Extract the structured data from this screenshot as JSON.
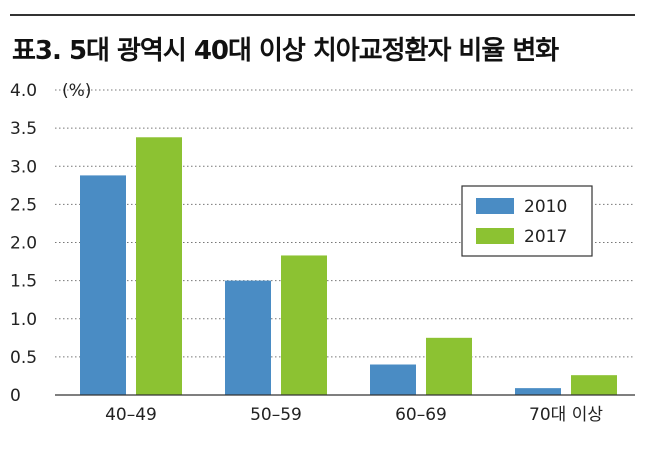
{
  "title": "표3. 5대 광역시 40대 이상 치아교정환자 비율 변화",
  "chart_data": {
    "type": "bar",
    "title": "표3. 5대 광역시 40대 이상 치아교정환자 비율 변화",
    "unit_label": "(%)",
    "categories": [
      "40–49",
      "50–59",
      "60–69",
      "70대 이상"
    ],
    "series": [
      {
        "name": "2010",
        "color": "#4a8cc4",
        "values": [
          2.88,
          1.5,
          0.4,
          0.09
        ]
      },
      {
        "name": "2017",
        "color": "#8cc232",
        "values": [
          3.38,
          1.83,
          0.75,
          0.26
        ]
      }
    ],
    "ylim": [
      0,
      4.0
    ],
    "yticks": [
      "0",
      "0.5",
      "1.0",
      "1.5",
      "2.0",
      "2.5",
      "3.0",
      "3.5",
      "4.0"
    ],
    "grid": "dotted-horizontal",
    "legend_position": "right-middle"
  }
}
